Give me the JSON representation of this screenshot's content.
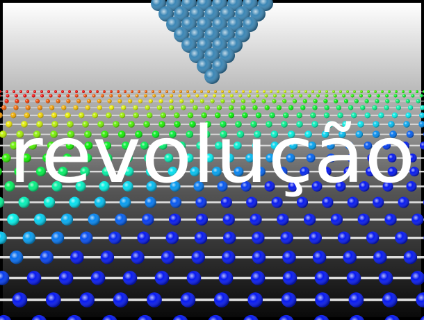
{
  "slide": {
    "title": "revolução"
  }
}
